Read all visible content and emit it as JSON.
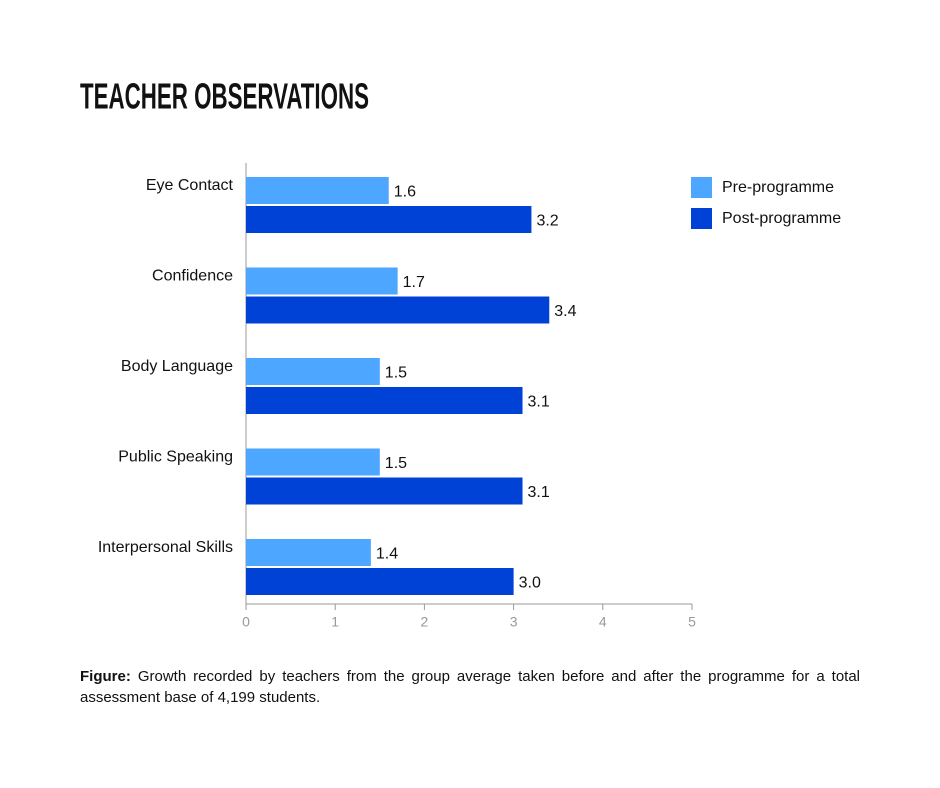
{
  "chart_data": {
    "type": "hbar",
    "title": "TEACHER OBSERVATIONS",
    "categories": [
      "Eye Contact",
      "Confidence",
      "Body Language",
      "Public Speaking",
      "Interpersonal Skills"
    ],
    "series": [
      {
        "name": "Pre-programme",
        "color": "#4da6ff",
        "values": [
          1.6,
          1.7,
          1.5,
          1.5,
          1.4
        ],
        "value_labels": [
          "1.6",
          "1.7",
          "1.5",
          "1.5",
          "1.4"
        ]
      },
      {
        "name": "Post-programme",
        "color": "#0041d6",
        "values": [
          3.2,
          3.4,
          3.1,
          3.1,
          3.0
        ],
        "value_labels": [
          "3.2",
          "3.4",
          "3.1",
          "3.1",
          "3.0"
        ]
      }
    ],
    "xlim": [
      0,
      5
    ],
    "xticks": [
      0,
      1,
      2,
      3,
      4,
      5
    ],
    "legend": "top-right",
    "note_label": "Figure:",
    "note": "Growth recorded by teachers from the group average taken before and after the programme for a total assessment base of 4,199 students."
  }
}
